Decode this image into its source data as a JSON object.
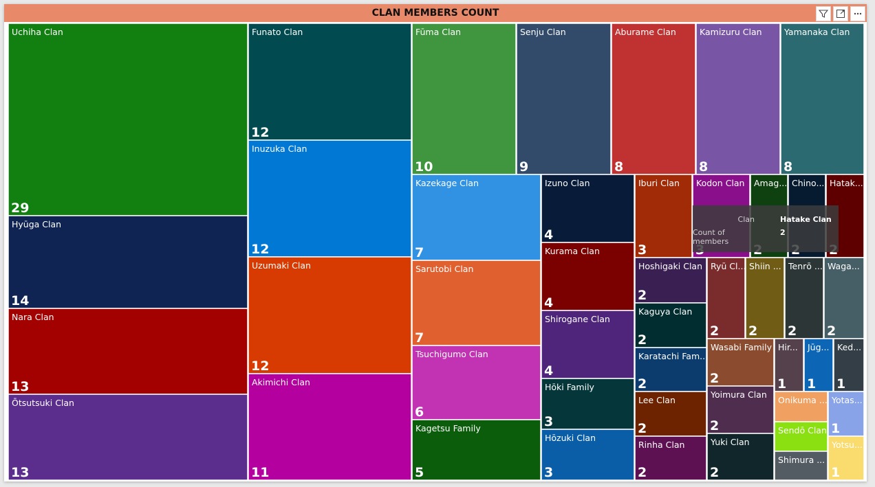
{
  "chart_data": {
    "type": "treemap",
    "title": "CLAN MEMBERS COUNT",
    "categories": [
      "Uchiha Clan",
      "Hyūga Clan",
      "Nara Clan",
      "Ōtsutsuki Clan",
      "Funato Clan",
      "Inuzuka Clan",
      "Uzumaki Clan",
      "Akimichi Clan",
      "Fūma Clan",
      "Senju Clan",
      "Aburame Clan",
      "Kamizuru Clan",
      "Yamanaka Clan",
      "Kazekage Clan",
      "Sarutobi Clan",
      "Tsuchigumo Clan",
      "Kagetsu Family",
      "Izuno Clan",
      "Kurama Clan",
      "Shirogane Clan",
      "Hōki Family",
      "Hōzuki Clan",
      "Iburi Clan",
      "Kodon Clan",
      "Amag...",
      "Chino...",
      "Hatak...",
      "Hoshigaki Clan",
      "Kaguya Clan",
      "Karatachi Fam...",
      "Lee Clan",
      "Rinha Clan",
      "Ryū Cl...",
      "Shiin ...",
      "Tenrō ...",
      "Waga...",
      "Wasabi Family",
      "Yoimura Clan",
      "Yuki Clan",
      "Hir...",
      "Jūg...",
      "Ked...",
      "Onikuma ...",
      "Yotas...",
      "Sendō Clan",
      "Shimura ...",
      "Yotsu..."
    ],
    "values": [
      29,
      14,
      13,
      13,
      12,
      12,
      12,
      11,
      10,
      9,
      8,
      8,
      8,
      7,
      7,
      6,
      5,
      4,
      4,
      4,
      3,
      3,
      3,
      3,
      2,
      2,
      2,
      2,
      2,
      2,
      2,
      2,
      2,
      2,
      2,
      2,
      2,
      2,
      2,
      1,
      1,
      1,
      1,
      1,
      1,
      1,
      1
    ],
    "value_labels": [
      "29",
      "14",
      "13",
      "13",
      "12",
      "12",
      "12",
      "11",
      "10",
      "9",
      "8",
      "8",
      "8",
      "7",
      "7",
      "6",
      "5",
      "4",
      "4",
      "4",
      "3",
      "3",
      "3",
      "3",
      "2",
      "2",
      "2",
      "2",
      "2",
      "2",
      "2",
      "2",
      "2",
      "2",
      "2",
      "2",
      "2",
      "2",
      "2",
      "1",
      "1",
      "1",
      "",
      "1",
      "",
      "",
      "1"
    ],
    "colors": [
      "#118011",
      "#0f2452",
      "#a30000",
      "#5b2d8c",
      "#014a4f",
      "#0078d4",
      "#d83b01",
      "#b4009e",
      "#40963f",
      "#334b6b",
      "#c03232",
      "#7955a6",
      "#2a6a70",
      "#3191e2",
      "#e0602f",
      "#c233b3",
      "#0b5c0b",
      "#081c3a",
      "#7b0000",
      "#4e257a",
      "#04363a",
      "#0a5ea8",
      "#a12b06",
      "#8a0f8a",
      "#0f4110",
      "#061a30",
      "#5e0000",
      "#3a1f52",
      "#022d30",
      "#0c3c6d",
      "#6d2300",
      "#5e1152",
      "#7a2b2b",
      "#705c14",
      "#2d3636",
      "#465e66",
      "#8a4b2e",
      "#4f2d4f",
      "#10262b",
      "#55414b",
      "#0d65b5",
      "#343e47",
      "#f0a061",
      "#88a3e8",
      "#8ae010",
      "#545c63",
      "#fadb6e"
    ]
  },
  "tooltip": {
    "label_clan": "Clan",
    "value_clan": "Hatake Clan",
    "label_count": "Count of members",
    "value_count": "2"
  },
  "header_icons": [
    "filter-icon",
    "focus-mode-icon",
    "more-options-icon"
  ]
}
